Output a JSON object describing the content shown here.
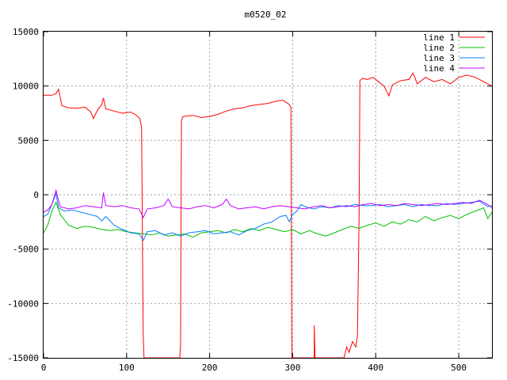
{
  "chart_data": {
    "type": "line",
    "title": "m0520_02",
    "xlabel": "",
    "ylabel": "",
    "xlim": [
      0,
      540
    ],
    "ylim": [
      -15000,
      15000
    ],
    "xticks": [
      0,
      100,
      200,
      300,
      400,
      500
    ],
    "yticks": [
      -15000,
      -10000,
      -5000,
      0,
      5000,
      10000,
      15000
    ],
    "grid": true,
    "legend_position": "top-right",
    "series": [
      {
        "name": "line 1",
        "color": "#ff0000",
        "points": [
          [
            0,
            9150
          ],
          [
            10,
            9150
          ],
          [
            15,
            9300
          ],
          [
            18,
            9700
          ],
          [
            22,
            8200
          ],
          [
            30,
            8000
          ],
          [
            40,
            7950
          ],
          [
            50,
            8050
          ],
          [
            57,
            7600
          ],
          [
            60,
            7000
          ],
          [
            65,
            7800
          ],
          [
            70,
            8300
          ],
          [
            72,
            8900
          ],
          [
            75,
            7900
          ],
          [
            85,
            7700
          ],
          [
            95,
            7500
          ],
          [
            105,
            7600
          ],
          [
            112,
            7300
          ],
          [
            116,
            7000
          ],
          [
            118,
            6200
          ],
          [
            120,
            -13000
          ],
          [
            121,
            -15000
          ],
          [
            122,
            -15000
          ],
          [
            164,
            -15000
          ],
          [
            165,
            -14000
          ],
          [
            166,
            6800
          ],
          [
            168,
            7200
          ],
          [
            180,
            7300
          ],
          [
            190,
            7100
          ],
          [
            200,
            7200
          ],
          [
            210,
            7400
          ],
          [
            220,
            7700
          ],
          [
            230,
            7900
          ],
          [
            240,
            8000
          ],
          [
            250,
            8200
          ],
          [
            260,
            8300
          ],
          [
            270,
            8400
          ],
          [
            280,
            8600
          ],
          [
            288,
            8700
          ],
          [
            292,
            8500
          ],
          [
            296,
            8300
          ],
          [
            298,
            8000
          ],
          [
            299,
            -15000
          ],
          [
            304,
            -15000
          ],
          [
            309,
            -15000
          ],
          [
            314,
            -15000
          ],
          [
            318,
            -15000
          ],
          [
            322,
            -15000
          ],
          [
            326,
            -15000
          ],
          [
            326,
            -12000
          ],
          [
            327,
            -15000
          ],
          [
            345,
            -15000
          ],
          [
            362,
            -15000
          ],
          [
            365,
            -14000
          ],
          [
            368,
            -14500
          ],
          [
            372,
            -13500
          ],
          [
            376,
            -14000
          ],
          [
            378,
            -13000
          ],
          [
            380,
            -2000
          ],
          [
            381,
            10500
          ],
          [
            384,
            10700
          ],
          [
            390,
            10600
          ],
          [
            397,
            10800
          ],
          [
            410,
            10000
          ],
          [
            416,
            9100
          ],
          [
            420,
            10100
          ],
          [
            430,
            10500
          ],
          [
            440,
            10600
          ],
          [
            445,
            11200
          ],
          [
            450,
            10200
          ],
          [
            460,
            10800
          ],
          [
            470,
            10400
          ],
          [
            480,
            10600
          ],
          [
            490,
            10200
          ],
          [
            500,
            10800
          ],
          [
            510,
            11000
          ],
          [
            520,
            10800
          ],
          [
            530,
            10400
          ],
          [
            540,
            10000
          ]
        ]
      },
      {
        "name": "line 2",
        "color": "#00c000",
        "points": [
          [
            0,
            -3500
          ],
          [
            5,
            -2800
          ],
          [
            10,
            -1500
          ],
          [
            15,
            -700
          ],
          [
            20,
            -1800
          ],
          [
            30,
            -2800
          ],
          [
            40,
            -3100
          ],
          [
            50,
            -2900
          ],
          [
            60,
            -3000
          ],
          [
            70,
            -3200
          ],
          [
            80,
            -3300
          ],
          [
            90,
            -3200
          ],
          [
            100,
            -3400
          ],
          [
            110,
            -3500
          ],
          [
            120,
            -3600
          ],
          [
            130,
            -3700
          ],
          [
            140,
            -3500
          ],
          [
            150,
            -3800
          ],
          [
            160,
            -3700
          ],
          [
            170,
            -3600
          ],
          [
            180,
            -3900
          ],
          [
            190,
            -3500
          ],
          [
            200,
            -3400
          ],
          [
            210,
            -3300
          ],
          [
            220,
            -3500
          ],
          [
            230,
            -3200
          ],
          [
            240,
            -3400
          ],
          [
            250,
            -3100
          ],
          [
            260,
            -3300
          ],
          [
            270,
            -3000
          ],
          [
            280,
            -3200
          ],
          [
            290,
            -3400
          ],
          [
            300,
            -3200
          ],
          [
            310,
            -3600
          ],
          [
            320,
            -3300
          ],
          [
            330,
            -3600
          ],
          [
            340,
            -3800
          ],
          [
            350,
            -3500
          ],
          [
            360,
            -3200
          ],
          [
            370,
            -2900
          ],
          [
            380,
            -3100
          ],
          [
            390,
            -2800
          ],
          [
            400,
            -2600
          ],
          [
            410,
            -2900
          ],
          [
            420,
            -2500
          ],
          [
            430,
            -2700
          ],
          [
            440,
            -2300
          ],
          [
            450,
            -2500
          ],
          [
            460,
            -2000
          ],
          [
            470,
            -2400
          ],
          [
            480,
            -2100
          ],
          [
            490,
            -1900
          ],
          [
            500,
            -2200
          ],
          [
            510,
            -1800
          ],
          [
            520,
            -1500
          ],
          [
            530,
            -1200
          ],
          [
            535,
            -2200
          ],
          [
            540,
            -1600
          ]
        ]
      },
      {
        "name": "line 3",
        "color": "#0080ff",
        "points": [
          [
            0,
            -2000
          ],
          [
            5,
            -1800
          ],
          [
            10,
            -900
          ],
          [
            15,
            100
          ],
          [
            18,
            -1200
          ],
          [
            25,
            -1500
          ],
          [
            35,
            -1400
          ],
          [
            45,
            -1600
          ],
          [
            55,
            -1800
          ],
          [
            65,
            -2000
          ],
          [
            70,
            -2400
          ],
          [
            75,
            -2000
          ],
          [
            85,
            -2800
          ],
          [
            95,
            -3200
          ],
          [
            105,
            -3500
          ],
          [
            115,
            -3600
          ],
          [
            120,
            -4200
          ],
          [
            125,
            -3400
          ],
          [
            135,
            -3300
          ],
          [
            145,
            -3700
          ],
          [
            155,
            -3500
          ],
          [
            165,
            -3800
          ],
          [
            175,
            -3500
          ],
          [
            185,
            -3400
          ],
          [
            195,
            -3300
          ],
          [
            205,
            -3600
          ],
          [
            215,
            -3500
          ],
          [
            225,
            -3400
          ],
          [
            235,
            -3700
          ],
          [
            245,
            -3300
          ],
          [
            255,
            -3100
          ],
          [
            265,
            -2700
          ],
          [
            275,
            -2500
          ],
          [
            285,
            -2000
          ],
          [
            292,
            -1900
          ],
          [
            296,
            -2500
          ],
          [
            300,
            -1800
          ],
          [
            305,
            -1500
          ],
          [
            310,
            -900
          ],
          [
            315,
            -1100
          ],
          [
            325,
            -1300
          ],
          [
            335,
            -1100
          ],
          [
            345,
            -1200
          ],
          [
            355,
            -1000
          ],
          [
            365,
            -1100
          ],
          [
            375,
            -900
          ],
          [
            385,
            -1000
          ],
          [
            395,
            -1000
          ],
          [
            405,
            -900
          ],
          [
            415,
            -1100
          ],
          [
            425,
            -1000
          ],
          [
            435,
            -900
          ],
          [
            445,
            -1100
          ],
          [
            455,
            -900
          ],
          [
            465,
            -1000
          ],
          [
            475,
            -1000
          ],
          [
            485,
            -800
          ],
          [
            495,
            -900
          ],
          [
            505,
            -800
          ],
          [
            515,
            -700
          ],
          [
            525,
            -600
          ],
          [
            535,
            -1100
          ],
          [
            540,
            -1000
          ]
        ]
      },
      {
        "name": "line 4",
        "color": "#c000ff",
        "points": [
          [
            0,
            -1600
          ],
          [
            5,
            -1400
          ],
          [
            10,
            -900
          ],
          [
            15,
            400
          ],
          [
            20,
            -1100
          ],
          [
            30,
            -1300
          ],
          [
            40,
            -1200
          ],
          [
            50,
            -1000
          ],
          [
            60,
            -1100
          ],
          [
            70,
            -1200
          ],
          [
            72,
            200
          ],
          [
            75,
            -1000
          ],
          [
            85,
            -1100
          ],
          [
            95,
            -1000
          ],
          [
            105,
            -1200
          ],
          [
            115,
            -1300
          ],
          [
            120,
            -2100
          ],
          [
            125,
            -1300
          ],
          [
            135,
            -1200
          ],
          [
            145,
            -1000
          ],
          [
            150,
            -400
          ],
          [
            155,
            -1100
          ],
          [
            165,
            -1200
          ],
          [
            175,
            -1300
          ],
          [
            185,
            -1100
          ],
          [
            195,
            -1000
          ],
          [
            205,
            -1200
          ],
          [
            215,
            -900
          ],
          [
            220,
            -400
          ],
          [
            225,
            -1000
          ],
          [
            235,
            -1300
          ],
          [
            245,
            -1200
          ],
          [
            255,
            -1100
          ],
          [
            265,
            -1300
          ],
          [
            275,
            -1100
          ],
          [
            285,
            -1000
          ],
          [
            295,
            -1100
          ],
          [
            305,
            -1200
          ],
          [
            315,
            -1300
          ],
          [
            325,
            -1100
          ],
          [
            335,
            -1000
          ],
          [
            345,
            -1200
          ],
          [
            355,
            -1100
          ],
          [
            365,
            -1000
          ],
          [
            375,
            -1100
          ],
          [
            385,
            -900
          ],
          [
            395,
            -800
          ],
          [
            405,
            -1000
          ],
          [
            415,
            -900
          ],
          [
            425,
            -1000
          ],
          [
            435,
            -800
          ],
          [
            445,
            -900
          ],
          [
            455,
            -1000
          ],
          [
            465,
            -900
          ],
          [
            475,
            -800
          ],
          [
            485,
            -900
          ],
          [
            495,
            -800
          ],
          [
            505,
            -700
          ],
          [
            515,
            -800
          ],
          [
            525,
            -500
          ],
          [
            535,
            -900
          ],
          [
            540,
            -1200
          ]
        ]
      }
    ]
  }
}
